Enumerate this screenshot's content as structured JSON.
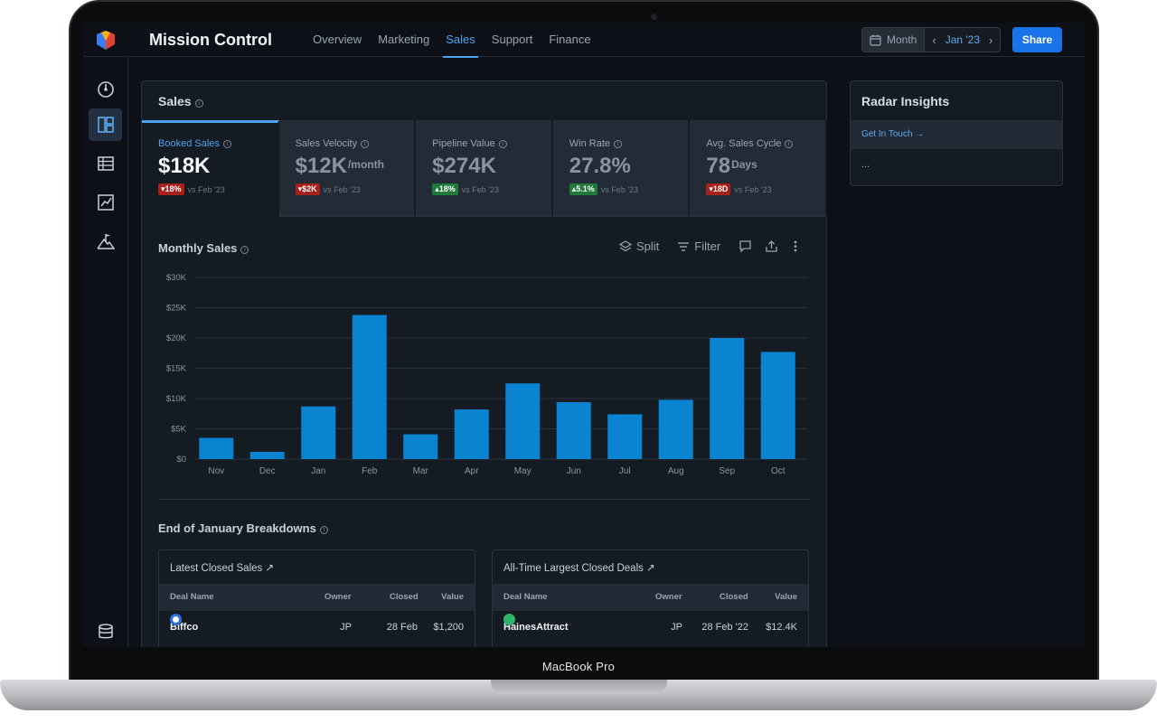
{
  "device": {
    "label": "MacBook Pro"
  },
  "app": {
    "title": "Mission Control"
  },
  "nav": {
    "tabs": [
      "Overview",
      "Marketing",
      "Sales",
      "Support",
      "Finance"
    ],
    "active": "Sales"
  },
  "date_control": {
    "period": "Month",
    "current": "Jan '23"
  },
  "share_label": "Share",
  "sidebar": {
    "items": [
      "gauge-icon",
      "dashboard-icon",
      "table-icon",
      "chart-icon",
      "mountain-flag-icon",
      "database-icon"
    ],
    "active": "dashboard-icon"
  },
  "sales_card": {
    "title": "Sales",
    "kpis": [
      {
        "label": "Booked Sales",
        "value": "$18K",
        "unit": "",
        "delta": "18%",
        "direction": "down",
        "compare": "vs Feb '23"
      },
      {
        "label": "Sales Velocity",
        "value": "$12K",
        "unit": "/month",
        "delta": "$2K",
        "direction": "down",
        "compare": "vs Feb '23"
      },
      {
        "label": "Pipeline Value",
        "value": "$274K",
        "unit": "",
        "delta": "18%",
        "direction": "up",
        "compare": "vs Feb '23"
      },
      {
        "label": "Win Rate",
        "value": "27.8%",
        "unit": "",
        "delta": "5.1%",
        "direction": "up",
        "compare": "vs Feb '23"
      },
      {
        "label": "Avg. Sales Cycle",
        "value": "78",
        "unit": "Days",
        "delta": "18D",
        "direction": "down",
        "compare": "vs Feb '23"
      }
    ],
    "chart_title": "Monthly Sales",
    "tools": {
      "split": "Split",
      "filter": "Filter"
    },
    "breakdown_title": "End of January Breakdowns"
  },
  "chart_data": {
    "type": "bar",
    "title": "Monthly Sales",
    "categories": [
      "Nov",
      "Dec",
      "Jan",
      "Feb",
      "Mar",
      "Apr",
      "May",
      "Jun",
      "Jul",
      "Aug",
      "Sep",
      "Oct"
    ],
    "values": [
      3500,
      1200,
      8700,
      23800,
      4100,
      8200,
      12500,
      9400,
      7400,
      9800,
      20000,
      17700
    ],
    "ylim": [
      0,
      30000
    ],
    "yticks": [
      0,
      5000,
      10000,
      15000,
      20000,
      25000,
      30000
    ],
    "ytick_labels": [
      "$0",
      "$5K",
      "$10K",
      "$15K",
      "$20K",
      "$25K",
      "$30K"
    ],
    "bar_color": "#0a84d0",
    "grid": true,
    "xlabel": "",
    "ylabel": ""
  },
  "tables": [
    {
      "title": "Latest Closed Sales",
      "columns": [
        "Deal Name",
        "Owner",
        "Closed",
        "Value"
      ],
      "rows": [
        {
          "name": "Biffco",
          "owner": "JP",
          "closed": "28 Feb",
          "value": "$1,200"
        }
      ]
    },
    {
      "title": "All-Time Largest Closed Deals",
      "columns": [
        "Deal Name",
        "Owner",
        "Closed",
        "Value"
      ],
      "rows": [
        {
          "name": "HainesAttract",
          "owner": "JP",
          "closed": "28 Feb '22",
          "value": "$12.4K"
        }
      ]
    }
  ],
  "radar": {
    "title": "Radar Insights",
    "link": "Get In Touch",
    "body": "..."
  },
  "colors": {
    "accent": "#4da3f5",
    "primary_button": "#1a73e8",
    "negative": "#a8201a",
    "positive": "#1f7a3a"
  }
}
